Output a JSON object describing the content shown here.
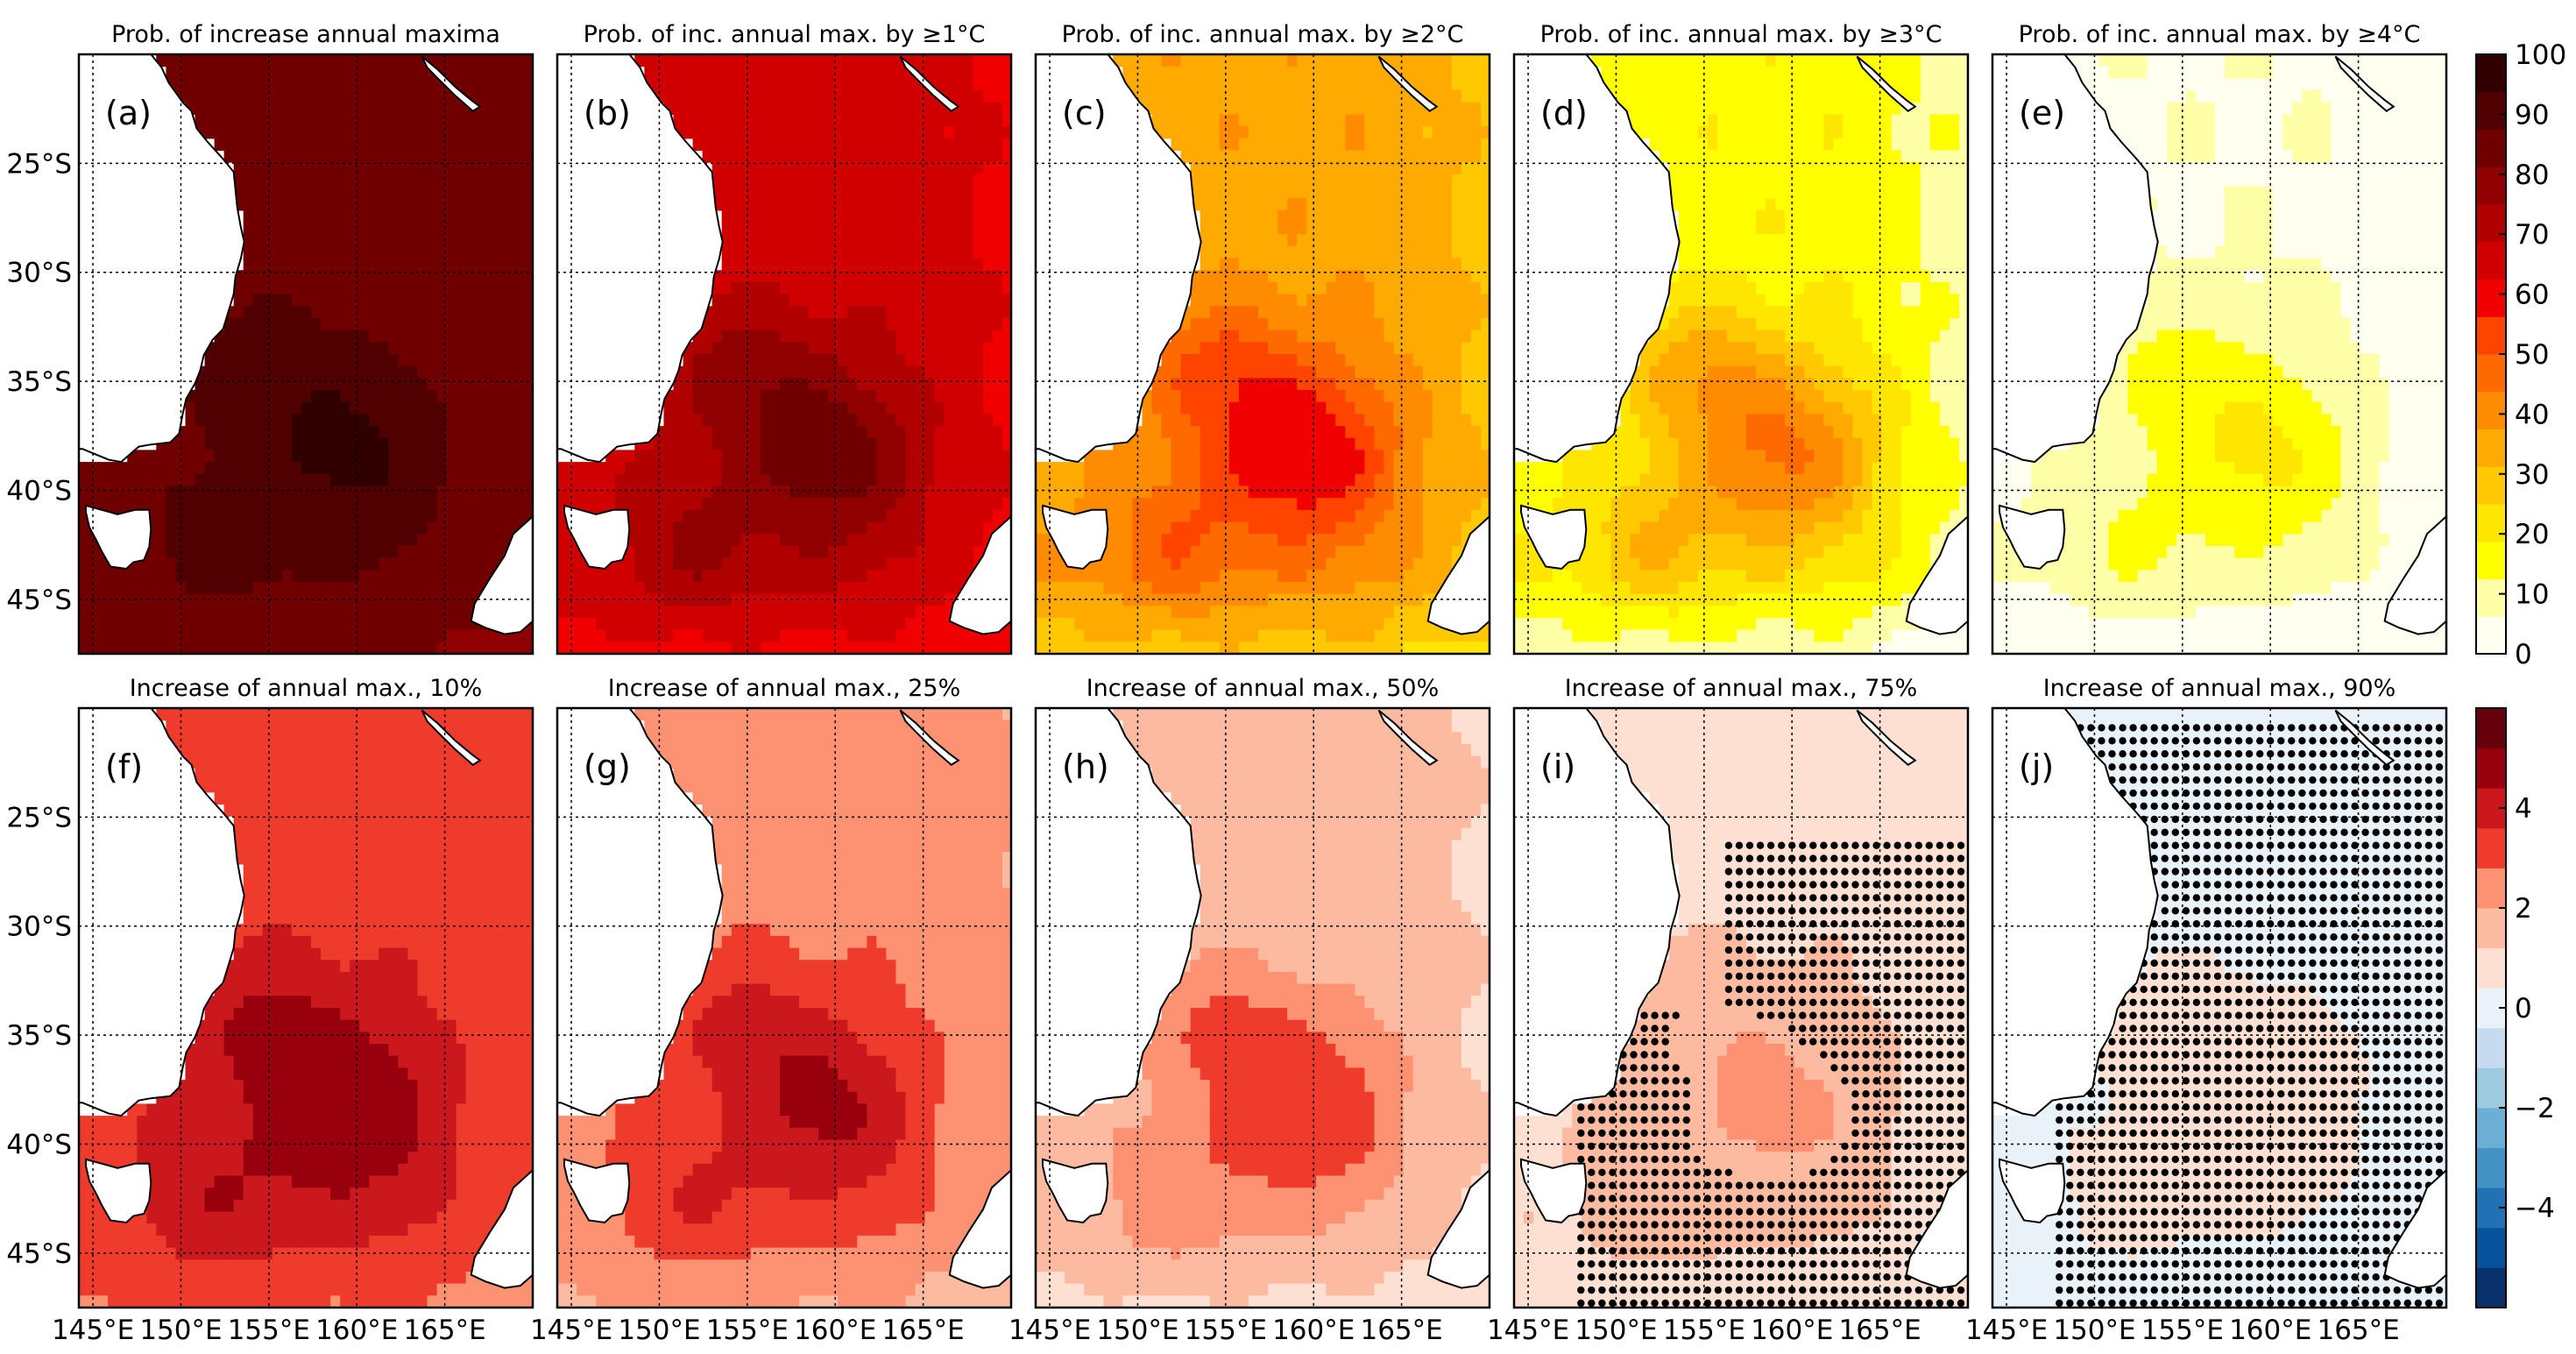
{
  "figure": {
    "lat_ticks": [
      "25°S",
      "30°S",
      "35°S",
      "40°S",
      "45°S"
    ],
    "lon_ticks": [
      "145°E",
      "150°E",
      "155°E",
      "160°E",
      "165°E"
    ],
    "colorbar_top": {
      "ticks": [
        "100",
        "90",
        "80",
        "70",
        "60",
        "50",
        "40",
        "30",
        "20",
        "10",
        "0"
      ],
      "range": [
        0,
        100
      ],
      "colors": [
        "#fffff0",
        "#ffffa8",
        "#ffff00",
        "#ffe600",
        "#ffc800",
        "#ffaa00",
        "#ff8c00",
        "#ff6a00",
        "#ff4400",
        "#f00000",
        "#d00000",
        "#b00000",
        "#900000",
        "#700000",
        "#500000",
        "#300000"
      ]
    },
    "colorbar_bottom": {
      "ticks": [
        "4",
        "2",
        "0",
        "−2",
        "−4"
      ],
      "range": [
        -6,
        6
      ],
      "colors": [
        "#08306b",
        "#08519c",
        "#2171b5",
        "#4292c6",
        "#6baed6",
        "#9ecae1",
        "#c6dbef",
        "#e9f2f9",
        "#fde0d2",
        "#fcbba1",
        "#fc9272",
        "#ef3b2c",
        "#cb181d",
        "#99000d",
        "#67000d"
      ]
    },
    "panels_top": [
      {
        "letter": "(a)",
        "title": "Prob. of increase annual maxima",
        "base": 85,
        "hot": 95
      },
      {
        "letter": "(b)",
        "title": "Prob. of inc. annual max. by ≥1°C",
        "base": 66,
        "hot": 85
      },
      {
        "letter": "(c)",
        "title": "Prob. of inc. annual max. by ≥2°C",
        "base": 36,
        "hot": 62
      },
      {
        "letter": "(d)",
        "title": "Prob. of inc. annual max. by ≥3°C",
        "base": 17,
        "hot": 45
      },
      {
        "letter": "(e)",
        "title": "Prob. of inc. annual max. by ≥4°C",
        "base": 6,
        "hot": 20
      }
    ],
    "panels_bottom": [
      {
        "letter": "(f)",
        "title": "Increase of annual max., 10%",
        "base": 3.4,
        "hot": 5.2
      },
      {
        "letter": "(g)",
        "title": "Increase of annual max., 25%",
        "base": 2.6,
        "hot": 4.6
      },
      {
        "letter": "(h)",
        "title": "Increase of annual max., 50%",
        "base": 1.6,
        "hot": 3.6
      },
      {
        "letter": "(i)",
        "title": "Increase of annual max., 75%",
        "base": 1.1,
        "hot": 2.2
      },
      {
        "letter": "(j)",
        "title": "Increase of annual max., 90%",
        "base": 0.3,
        "hot": 0.8
      }
    ]
  }
}
